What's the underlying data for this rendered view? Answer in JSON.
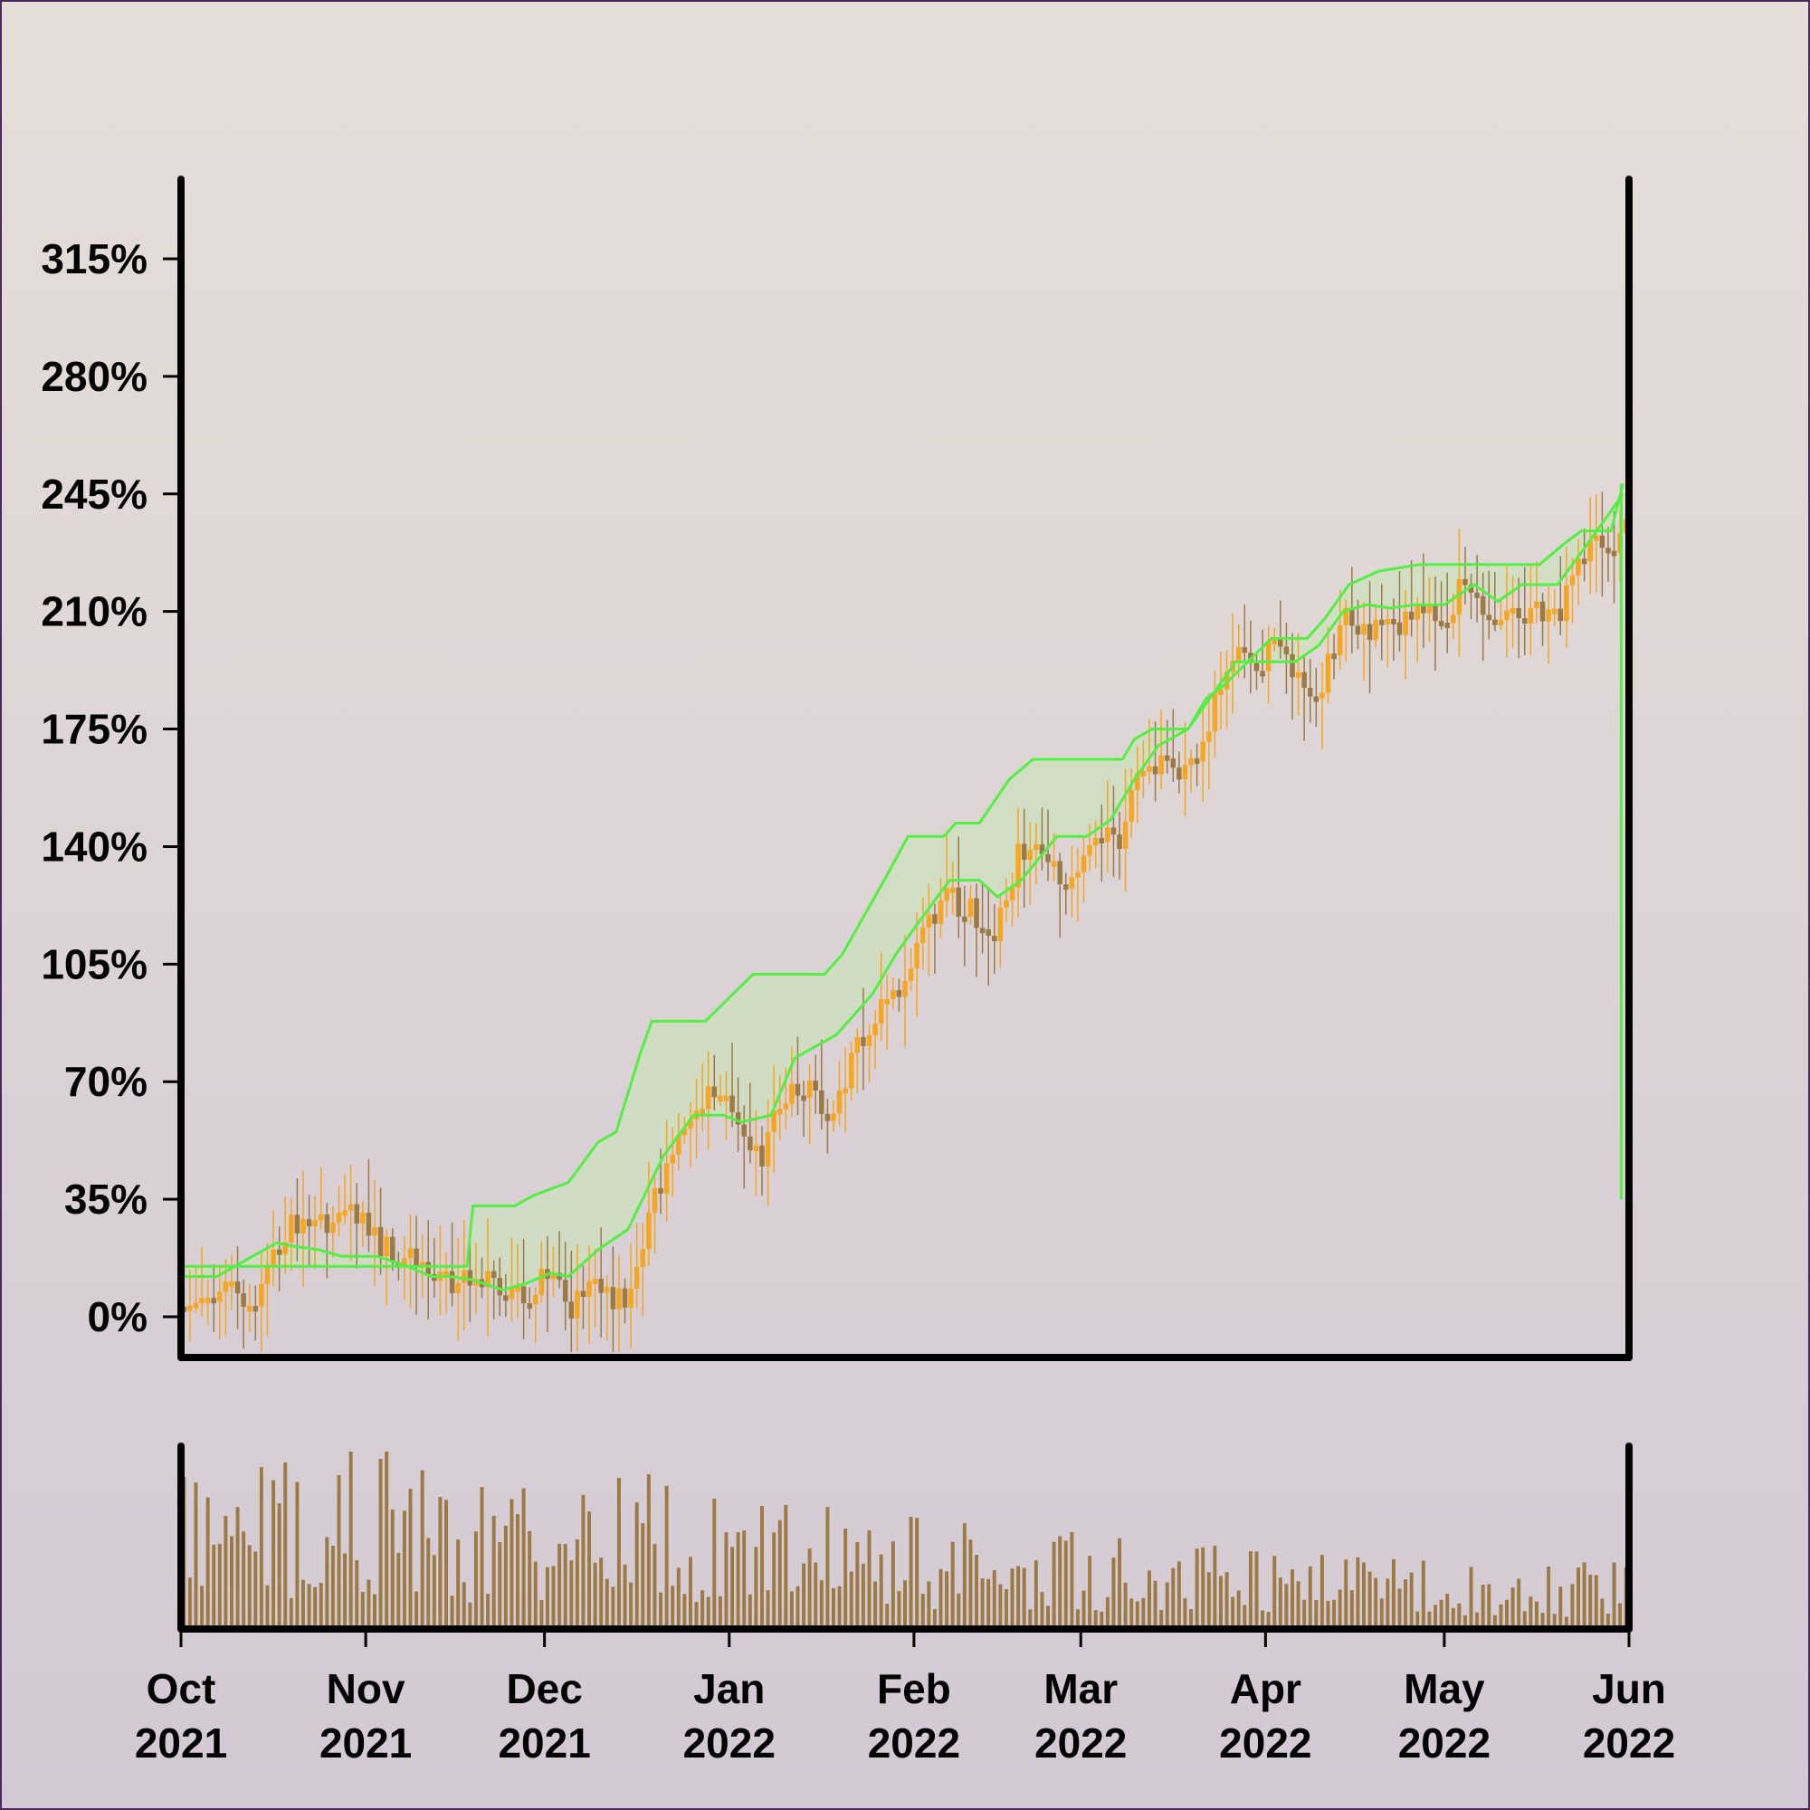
{
  "chart_data": {
    "type": "candlestick",
    "title": "",
    "xlabel": "",
    "ylabel": "",
    "y_unit": "%",
    "ylim": [
      -10,
      335
    ],
    "y_ticks": [
      {
        "value": 0,
        "label": "0%"
      },
      {
        "value": 35,
        "label": "35%"
      },
      {
        "value": 70,
        "label": "70%"
      },
      {
        "value": 105,
        "label": "105%"
      },
      {
        "value": 140,
        "label": "140%"
      },
      {
        "value": 175,
        "label": "175%"
      },
      {
        "value": 210,
        "label": "210%"
      },
      {
        "value": 245,
        "label": "245%"
      },
      {
        "value": 280,
        "label": "280%"
      },
      {
        "value": 315,
        "label": "315%"
      }
    ],
    "xlim": [
      "2021-10-01",
      "2022-06-01"
    ],
    "x_ticks": [
      {
        "date": "2021-10-01",
        "month": "Oct",
        "year": "2021"
      },
      {
        "date": "2021-11-01",
        "month": "Nov",
        "year": "2021"
      },
      {
        "date": "2021-12-01",
        "month": "Dec",
        "year": "2021"
      },
      {
        "date": "2022-01-01",
        "month": "Jan",
        "year": "2022"
      },
      {
        "date": "2022-02-01",
        "month": "Feb",
        "year": "2022"
      },
      {
        "date": "2022-03-01",
        "month": "Mar",
        "year": "2022"
      },
      {
        "date": "2022-04-01",
        "month": "Apr",
        "year": "2022"
      },
      {
        "date": "2022-05-01",
        "month": "May",
        "year": "2022"
      },
      {
        "date": "2022-06-01",
        "month": "Jun",
        "year": "2022"
      }
    ],
    "price_path": [
      [
        "2021-10-01",
        3
      ],
      [
        "2021-10-05",
        3
      ],
      [
        "2021-10-09",
        13
      ],
      [
        "2021-10-12",
        0
      ],
      [
        "2021-10-15",
        14
      ],
      [
        "2021-10-20",
        28
      ],
      [
        "2021-10-26",
        28
      ],
      [
        "2021-10-29",
        33
      ],
      [
        "2021-11-03",
        22
      ],
      [
        "2021-11-07",
        18
      ],
      [
        "2021-11-13",
        12
      ],
      [
        "2021-11-17",
        10
      ],
      [
        "2021-11-22",
        10
      ],
      [
        "2021-11-28",
        5
      ],
      [
        "2021-12-02",
        14
      ],
      [
        "2021-12-05",
        2
      ],
      [
        "2021-12-09",
        10
      ],
      [
        "2021-12-13",
        4
      ],
      [
        "2021-12-16",
        9
      ],
      [
        "2021-12-20",
        38
      ],
      [
        "2021-12-24",
        55
      ],
      [
        "2021-12-29",
        70
      ],
      [
        "2022-01-03",
        58
      ],
      [
        "2022-01-06",
        45
      ],
      [
        "2022-01-10",
        65
      ],
      [
        "2022-01-14",
        68
      ],
      [
        "2022-01-18",
        58
      ],
      [
        "2022-01-22",
        80
      ],
      [
        "2022-01-26",
        90
      ],
      [
        "2022-01-30",
        100
      ],
      [
        "2022-02-03",
        115
      ],
      [
        "2022-02-07",
        125
      ],
      [
        "2022-02-11",
        120
      ],
      [
        "2022-02-15",
        115
      ],
      [
        "2022-02-19",
        140
      ],
      [
        "2022-02-23",
        138
      ],
      [
        "2022-02-27",
        128
      ],
      [
        "2022-03-03",
        145
      ],
      [
        "2022-03-07",
        140
      ],
      [
        "2022-03-11",
        165
      ],
      [
        "2022-03-15",
        165
      ],
      [
        "2022-03-19",
        160
      ],
      [
        "2022-03-23",
        180
      ],
      [
        "2022-03-27",
        200
      ],
      [
        "2022-03-31",
        195
      ],
      [
        "2022-04-03",
        200
      ],
      [
        "2022-04-07",
        190
      ],
      [
        "2022-04-10",
        185
      ],
      [
        "2022-04-14",
        210
      ],
      [
        "2022-04-18",
        205
      ],
      [
        "2022-04-22",
        205
      ],
      [
        "2022-04-26",
        208
      ],
      [
        "2022-05-02",
        210
      ],
      [
        "2022-05-04",
        220
      ],
      [
        "2022-05-08",
        210
      ],
      [
        "2022-05-14",
        210
      ],
      [
        "2022-05-20",
        208
      ],
      [
        "2022-05-23",
        220
      ],
      [
        "2022-05-26",
        232
      ],
      [
        "2022-05-29",
        225
      ],
      [
        "2022-05-31",
        240
      ]
    ],
    "upper_band_path": [
      [
        "2021-10-01",
        15
      ],
      [
        "2021-10-15",
        15
      ],
      [
        "2021-11-18",
        15
      ],
      [
        "2021-11-19",
        33
      ],
      [
        "2021-11-26",
        33
      ],
      [
        "2021-11-29",
        36
      ],
      [
        "2021-12-05",
        40
      ],
      [
        "2021-12-10",
        52
      ],
      [
        "2021-12-13",
        55
      ],
      [
        "2021-12-17",
        78
      ],
      [
        "2021-12-19",
        88
      ],
      [
        "2021-12-28",
        88
      ],
      [
        "2022-01-01",
        95
      ],
      [
        "2022-01-05",
        102
      ],
      [
        "2022-01-17",
        102
      ],
      [
        "2022-01-20",
        108
      ],
      [
        "2022-01-27",
        130
      ],
      [
        "2022-01-31",
        143
      ],
      [
        "2022-02-06",
        143
      ],
      [
        "2022-02-08",
        147
      ],
      [
        "2022-02-12",
        147
      ],
      [
        "2022-02-17",
        160
      ],
      [
        "2022-02-21",
        166
      ],
      [
        "2022-03-08",
        166
      ],
      [
        "2022-03-10",
        172
      ],
      [
        "2022-03-13",
        175
      ],
      [
        "2022-03-19",
        175
      ],
      [
        "2022-03-22",
        184
      ],
      [
        "2022-03-25",
        188
      ],
      [
        "2022-03-29",
        195
      ],
      [
        "2022-04-02",
        202
      ],
      [
        "2022-04-08",
        202
      ],
      [
        "2022-04-11",
        208
      ],
      [
        "2022-04-15",
        218
      ],
      [
        "2022-04-20",
        222
      ],
      [
        "2022-04-27",
        224
      ],
      [
        "2022-05-17",
        224
      ],
      [
        "2022-05-21",
        230
      ],
      [
        "2022-05-24",
        234
      ],
      [
        "2022-05-29",
        234
      ],
      [
        "2022-05-31",
        248
      ]
    ],
    "lower_band_path": [
      [
        "2021-10-01",
        12
      ],
      [
        "2021-10-07",
        12
      ],
      [
        "2021-10-09",
        14
      ],
      [
        "2021-10-14",
        19
      ],
      [
        "2021-10-17",
        22
      ],
      [
        "2021-10-20",
        21
      ],
      [
        "2021-10-24",
        20
      ],
      [
        "2021-10-28",
        18
      ],
      [
        "2021-11-03",
        18
      ],
      [
        "2021-11-08",
        15
      ],
      [
        "2021-11-12",
        12
      ],
      [
        "2021-11-15",
        12
      ],
      [
        "2021-11-19",
        11
      ],
      [
        "2021-11-24",
        8
      ],
      [
        "2021-11-28",
        10
      ],
      [
        "2021-12-02",
        13
      ],
      [
        "2021-12-05",
        12
      ],
      [
        "2021-12-10",
        20
      ],
      [
        "2021-12-15",
        26
      ],
      [
        "2021-12-21",
        48
      ],
      [
        "2021-12-26",
        60
      ],
      [
        "2021-12-31",
        60
      ],
      [
        "2022-01-03",
        58
      ],
      [
        "2022-01-08",
        60
      ],
      [
        "2022-01-12",
        77
      ],
      [
        "2022-01-15",
        80
      ],
      [
        "2022-01-19",
        84
      ],
      [
        "2022-01-25",
        96
      ],
      [
        "2022-01-29",
        108
      ],
      [
        "2022-02-02",
        118
      ],
      [
        "2022-02-07",
        130
      ],
      [
        "2022-02-12",
        130
      ],
      [
        "2022-02-15",
        125
      ],
      [
        "2022-02-19",
        130
      ],
      [
        "2022-02-25",
        143
      ],
      [
        "2022-03-02",
        143
      ],
      [
        "2022-03-06",
        148
      ],
      [
        "2022-03-10",
        160
      ],
      [
        "2022-03-14",
        170
      ],
      [
        "2022-03-19",
        175
      ],
      [
        "2022-03-23",
        185
      ],
      [
        "2022-03-27",
        195
      ],
      [
        "2022-04-01",
        195
      ],
      [
        "2022-04-06",
        195
      ],
      [
        "2022-04-10",
        200
      ],
      [
        "2022-04-14",
        210
      ],
      [
        "2022-04-18",
        212
      ],
      [
        "2022-04-22",
        211
      ],
      [
        "2022-04-26",
        212
      ],
      [
        "2022-05-01",
        212
      ],
      [
        "2022-05-06",
        218
      ],
      [
        "2022-05-10",
        213
      ],
      [
        "2022-05-14",
        218
      ],
      [
        "2022-05-20",
        218
      ],
      [
        "2022-05-25",
        230
      ],
      [
        "2022-05-31",
        245
      ]
    ],
    "volume_profile": [
      [
        "2021-10-01",
        0.62
      ],
      [
        "2021-10-20",
        0.68
      ],
      [
        "2021-11-05",
        0.72
      ],
      [
        "2021-11-20",
        0.55
      ],
      [
        "2021-12-10",
        0.66
      ],
      [
        "2021-12-25",
        0.55
      ],
      [
        "2022-01-15",
        0.48
      ],
      [
        "2022-02-05",
        0.42
      ],
      [
        "2022-03-01",
        0.38
      ],
      [
        "2022-04-01",
        0.3
      ],
      [
        "2022-05-01",
        0.26
      ],
      [
        "2022-05-31",
        0.28
      ]
    ],
    "colors": {
      "background_top": "#e6ded8",
      "background_bottom": "#d3c9d4",
      "candle_up": "#f5a623",
      "candle_down": "#9c7a45",
      "volume": "#9c7a45",
      "band_line": "#55ee44",
      "band_fill": "#c8e6b4",
      "axis": "#000000",
      "border": "#4a2a5a"
    }
  }
}
